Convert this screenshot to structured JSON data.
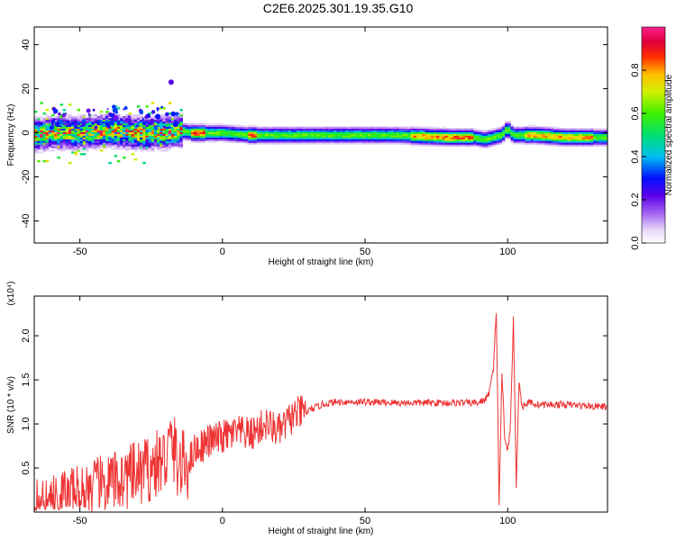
{
  "title": "C2E6.2025.301.19.35.G10",
  "chart_data": [
    {
      "type": "heatmap",
      "title": "",
      "xlabel": "Height of straight line (km)",
      "ylabel": "Frequency (Hz)",
      "xlim": [
        -66,
        135
      ],
      "ylim": [
        -50,
        48
      ],
      "xticks": [
        -50,
        0,
        50,
        100
      ],
      "yticks": [
        -40,
        -20,
        0,
        20,
        40
      ],
      "colorbar": {
        "label": "Normalized spectral amplitude",
        "range": [
          0,
          1
        ],
        "ticks": [
          0.0,
          0.2,
          0.4,
          0.6,
          0.8
        ]
      },
      "dominant_frequency_track": {
        "x": [
          -66,
          -60,
          -50,
          -40,
          -30,
          -20,
          -15,
          -10,
          0,
          10,
          20,
          40,
          60,
          80,
          88,
          92,
          95,
          98,
          100,
          102,
          110,
          120,
          135
        ],
        "y": [
          -1,
          0,
          0,
          1,
          0,
          0,
          1,
          0,
          0,
          -1,
          -1,
          -1,
          -1,
          -2,
          -2,
          -3,
          -2,
          -1,
          2,
          -1,
          -1,
          -2,
          -2
        ]
      }
    },
    {
      "type": "line",
      "title": "",
      "xlabel": "Height of straight line (km)",
      "ylabel": "SNR (10 * v/v)",
      "scale_label": "(x10⁴)",
      "xlim": [
        -66,
        135
      ],
      "ylim": [
        0,
        2.45
      ],
      "xticks": [
        -50,
        0,
        50,
        100
      ],
      "yticks": [
        0.5,
        1.0,
        1.5,
        2.0
      ],
      "series": [
        {
          "color": "#ee3333",
          "x": [
            -66,
            -60,
            -55,
            -50,
            -45,
            -40,
            -35,
            -30,
            -25,
            -20,
            -18,
            -15,
            -12,
            -10,
            -5,
            0,
            5,
            10,
            15,
            20,
            25,
            30,
            35,
            40,
            50,
            60,
            70,
            80,
            90,
            93,
            95,
            96,
            97,
            98,
            99,
            100,
            101,
            102,
            103,
            104,
            105,
            108,
            110,
            120,
            130,
            135
          ],
          "values": [
            0.1,
            0.12,
            0.2,
            0.22,
            0.28,
            0.32,
            0.38,
            0.42,
            0.5,
            0.6,
            0.8,
            0.5,
            0.55,
            0.7,
            0.8,
            0.85,
            0.9,
            0.88,
            1.0,
            0.92,
            1.1,
            1.15,
            1.22,
            1.25,
            1.25,
            1.24,
            1.24,
            1.24,
            1.24,
            1.3,
            1.6,
            2.3,
            0.1,
            1.6,
            0.8,
            0.7,
            1.0,
            2.2,
            0.3,
            1.5,
            1.2,
            1.25,
            1.22,
            1.22,
            1.2,
            1.2
          ]
        }
      ]
    }
  ]
}
